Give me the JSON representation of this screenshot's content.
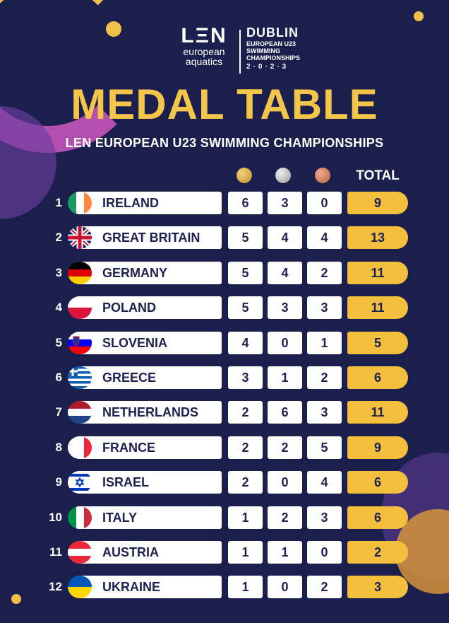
{
  "brand": {
    "len_word": "LΞN",
    "len_sub1": "european",
    "len_sub2": "aquatics",
    "dublin_word": "DUBLIN",
    "dublin_sub1": "EUROPEAN U23",
    "dublin_sub2": "SWIMMING",
    "dublin_sub3": "CHAMPIONSHIPS",
    "dublin_year": "2·0·2·3"
  },
  "title": "MEDAL TABLE",
  "subtitle": "LEN EUROPEAN U23 SWIMMING CHAMPIONSHIPS",
  "columns": {
    "gold_icon": "gold-medal-icon",
    "silver_icon": "silver-medal-icon",
    "bronze_icon": "bronze-medal-icon",
    "total": "TOTAL"
  },
  "colors": {
    "background": "#1b1f4d",
    "title": "#f3c64a",
    "total": "#f3bf3d",
    "gold": "#d9a441",
    "silver": "#c4c4c4",
    "bronze": "#d9856a"
  },
  "rows": [
    {
      "rank": "1",
      "country": "IRELAND",
      "flag": "ireland-flag",
      "gold": "6",
      "silver": "3",
      "bronze": "0",
      "total": "9"
    },
    {
      "rank": "2",
      "country": "GREAT BRITAIN",
      "flag": "great-britain-flag",
      "gold": "5",
      "silver": "4",
      "bronze": "4",
      "total": "13"
    },
    {
      "rank": "3",
      "country": "GERMANY",
      "flag": "germany-flag",
      "gold": "5",
      "silver": "4",
      "bronze": "2",
      "total": "11"
    },
    {
      "rank": "4",
      "country": "POLAND",
      "flag": "poland-flag",
      "gold": "5",
      "silver": "3",
      "bronze": "3",
      "total": "11"
    },
    {
      "rank": "5",
      "country": "SLOVENIA",
      "flag": "slovenia-flag",
      "gold": "4",
      "silver": "0",
      "bronze": "1",
      "total": "5"
    },
    {
      "rank": "6",
      "country": "GREECE",
      "flag": "greece-flag",
      "gold": "3",
      "silver": "1",
      "bronze": "2",
      "total": "6"
    },
    {
      "rank": "7",
      "country": "NETHERLANDS",
      "flag": "netherlands-flag",
      "gold": "2",
      "silver": "6",
      "bronze": "3",
      "total": "11"
    },
    {
      "rank": "8",
      "country": "FRANCE",
      "flag": "france-flag",
      "gold": "2",
      "silver": "2",
      "bronze": "5",
      "total": "9"
    },
    {
      "rank": "9",
      "country": "ISRAEL",
      "flag": "israel-flag",
      "gold": "2",
      "silver": "0",
      "bronze": "4",
      "total": "6"
    },
    {
      "rank": "10",
      "country": "ITALY",
      "flag": "italy-flag",
      "gold": "1",
      "silver": "2",
      "bronze": "3",
      "total": "6"
    },
    {
      "rank": "11",
      "country": "AUSTRIA",
      "flag": "austria-flag",
      "gold": "1",
      "silver": "1",
      "bronze": "0",
      "total": "2"
    },
    {
      "rank": "12",
      "country": "UKRAINE",
      "flag": "ukraine-flag",
      "gold": "1",
      "silver": "0",
      "bronze": "2",
      "total": "3"
    }
  ]
}
